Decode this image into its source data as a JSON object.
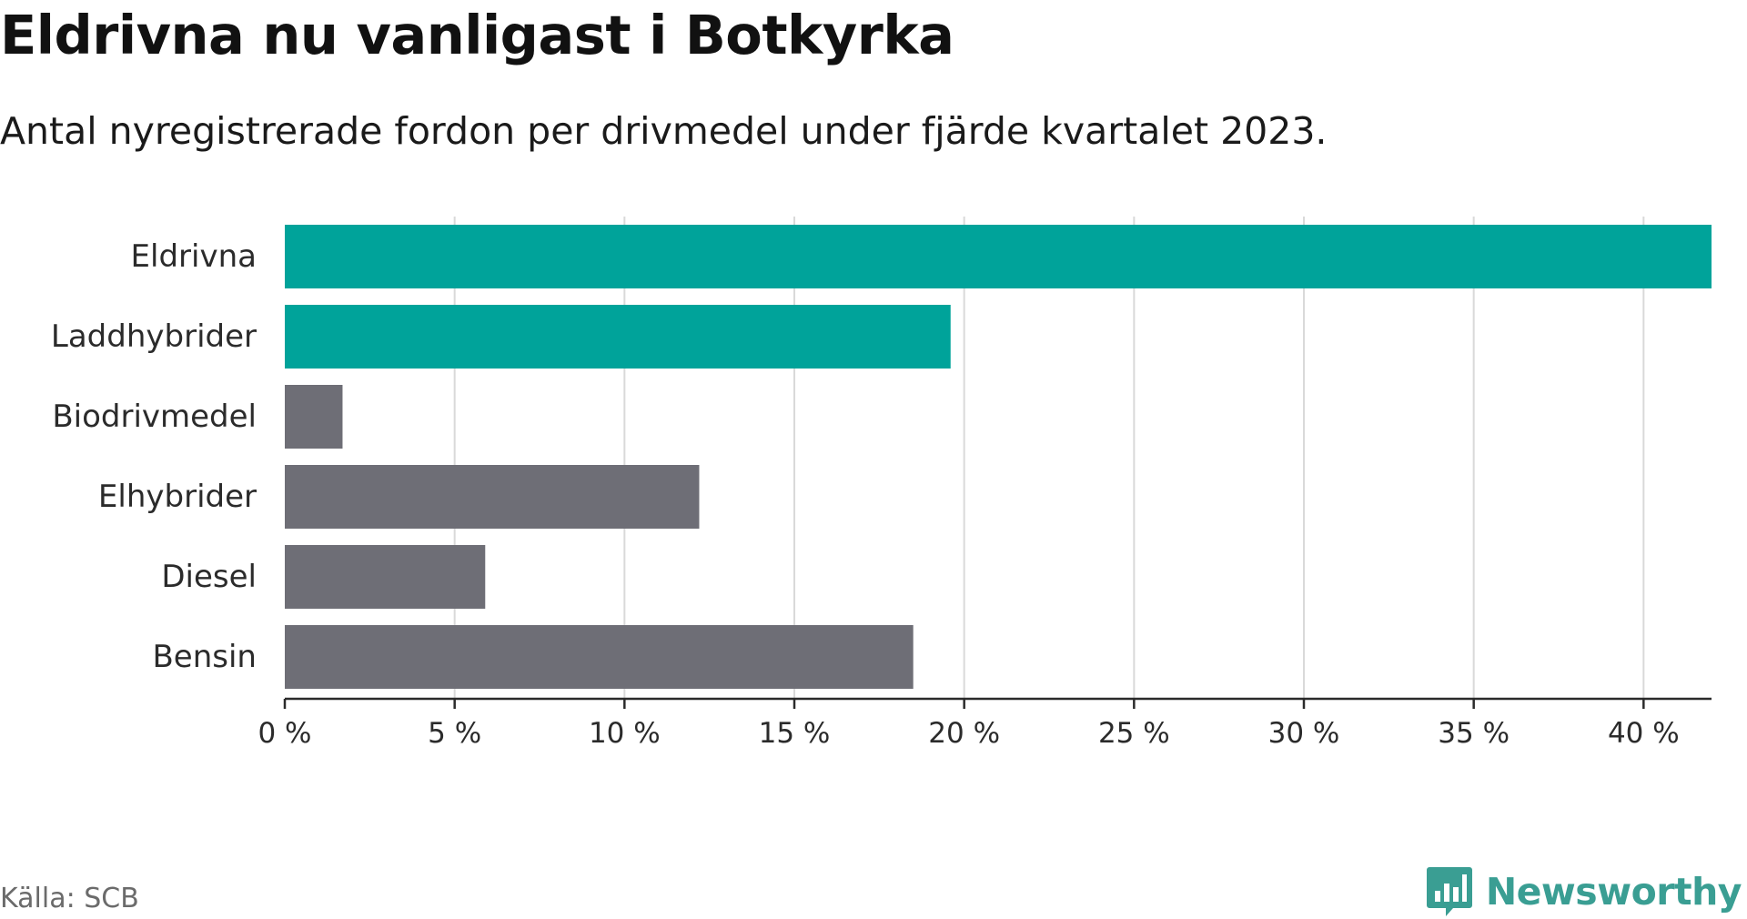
{
  "title": "Eldrivna nu vanligast i Botkyrka",
  "subtitle": "Antal nyregistrerade fordon per drivmedel under fjärde kvartalet 2023.",
  "source": "Källa: SCB",
  "brand": {
    "name": "Newsworthy",
    "logo_icon": "newsworthy-chart-logo-icon",
    "color": "#3a9e93"
  },
  "colors": {
    "highlight": "#00a39a",
    "neutral": "#6e6e76",
    "grid": "#d9d9d9",
    "axis": "#2b2b2b"
  },
  "chart_data": {
    "type": "bar",
    "orientation": "horizontal",
    "categories": [
      "Eldrivna",
      "Laddhybrider",
      "Biodrivmedel",
      "Elhybrider",
      "Diesel",
      "Bensin"
    ],
    "values": [
      42,
      19.6,
      1.7,
      12.2,
      5.9,
      18.5
    ],
    "highlighted": [
      true,
      true,
      false,
      false,
      false,
      false
    ],
    "unit": "%",
    "xlim": [
      0,
      42
    ],
    "ticks": [
      0,
      5,
      10,
      15,
      20,
      25,
      30,
      35,
      40
    ],
    "tick_labels": [
      "0 %",
      "5 %",
      "10 %",
      "15 %",
      "20 %",
      "25 %",
      "30 %",
      "35 %",
      "40 %"
    ],
    "grid": true,
    "legend": "none"
  }
}
